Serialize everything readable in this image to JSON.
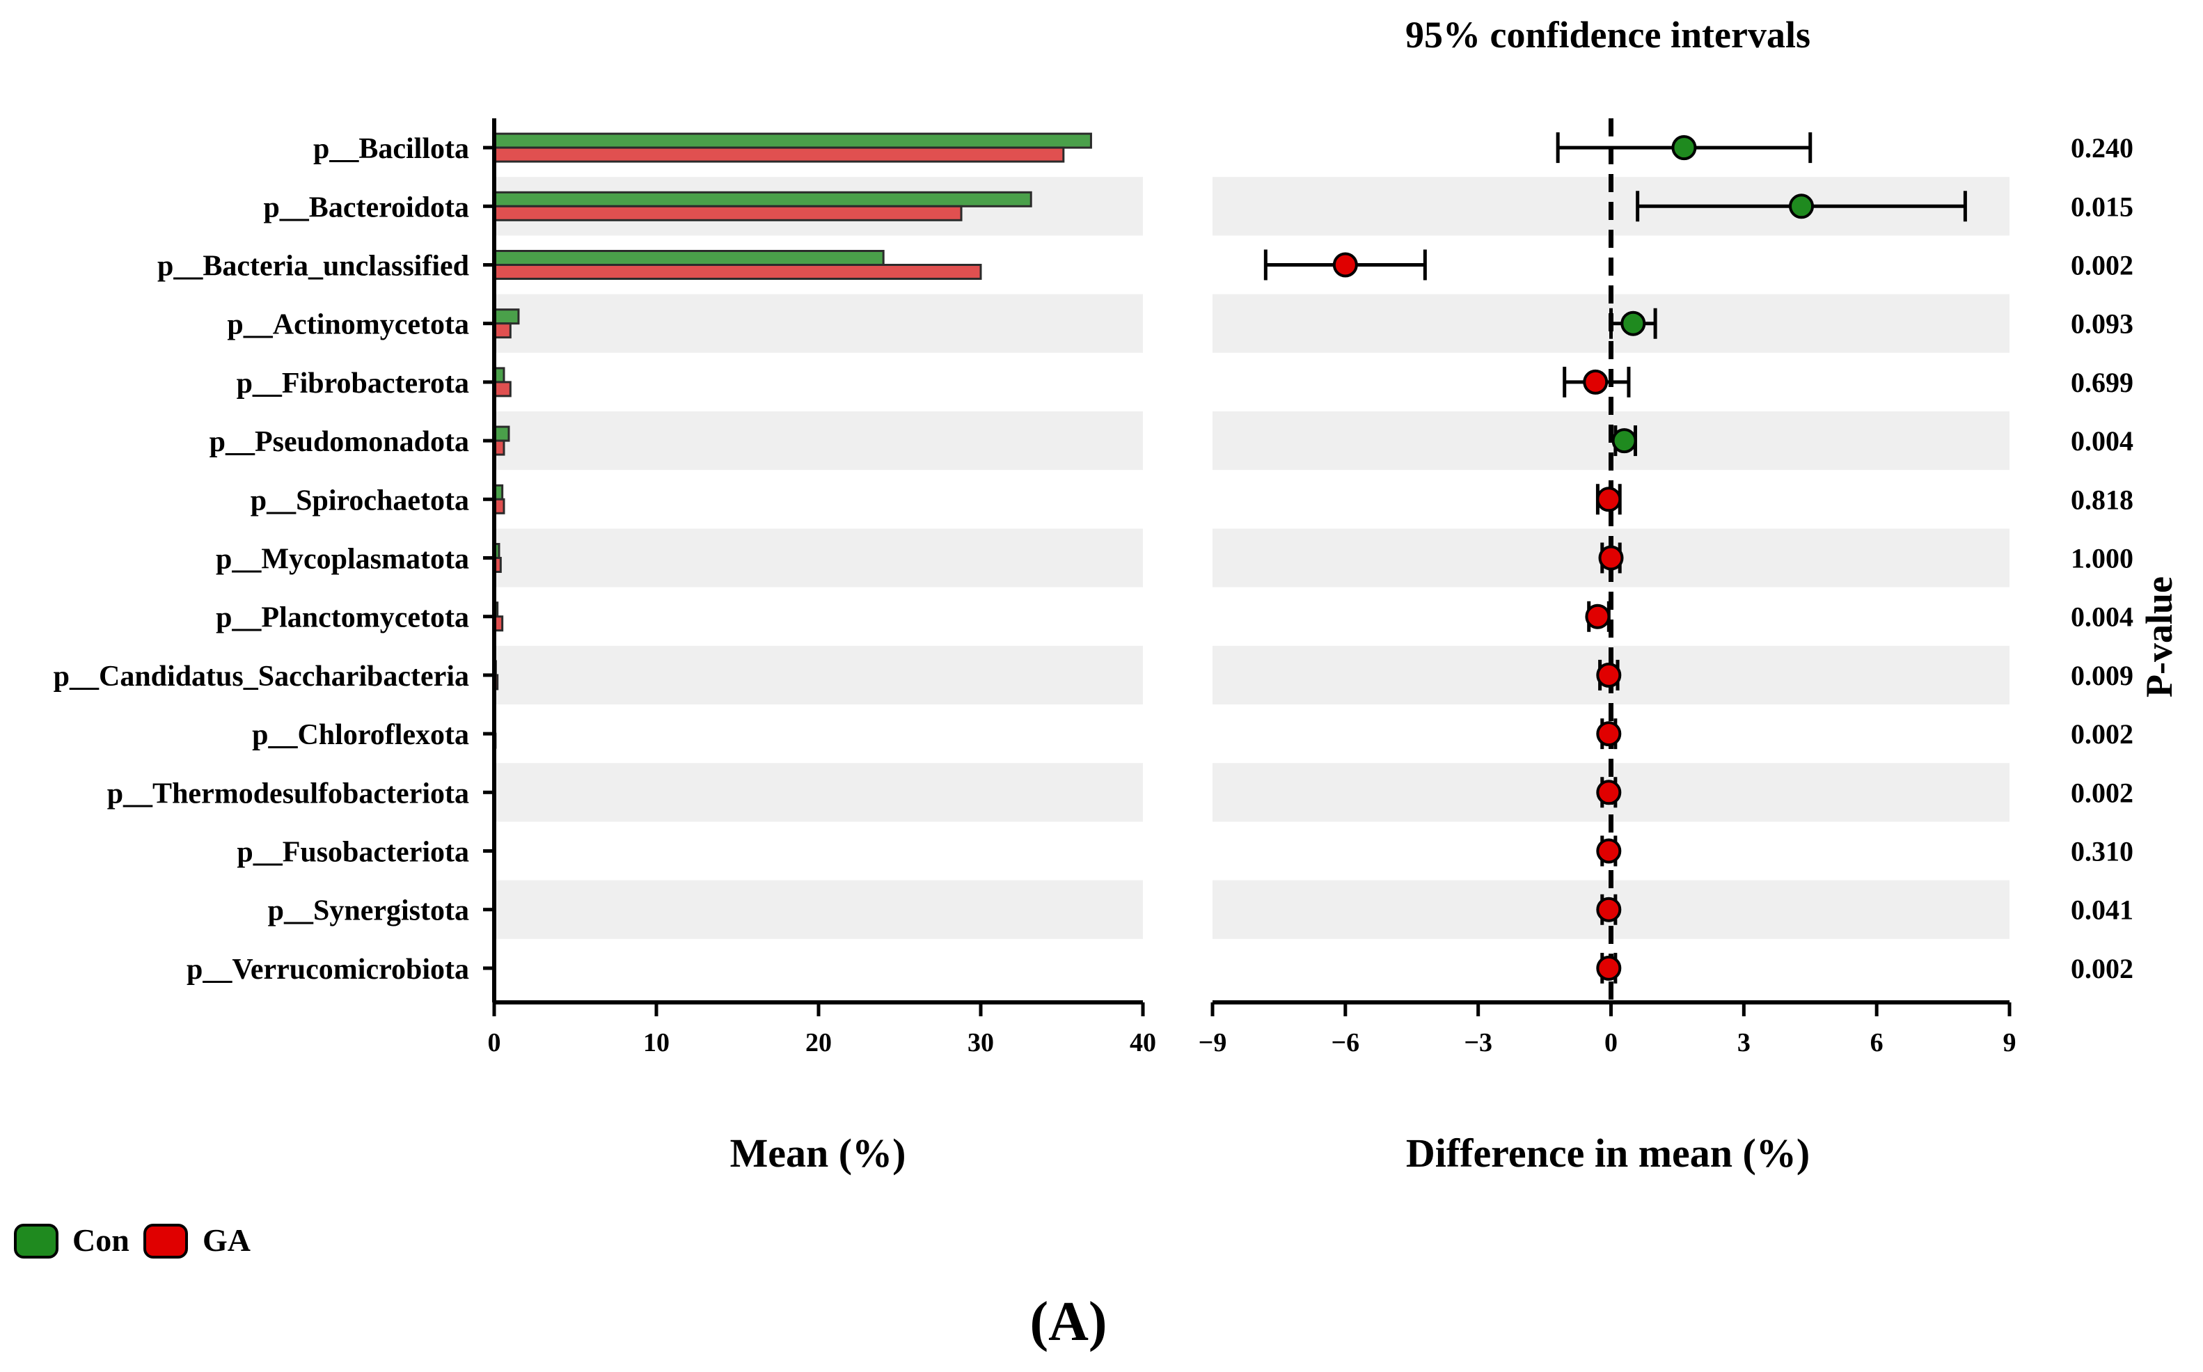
{
  "chart_data": {
    "type": "extended_error_bar",
    "panel_label": "(A)",
    "categories": [
      "p__Bacillota",
      "p__Bacteroidota",
      "p__Bacteria_unclassified",
      "p__Actinomycetota",
      "p__Fibrobacterota",
      "p__Pseudomonadota",
      "p__Spirochaetota",
      "p__Mycoplasmatota",
      "p__Planctomycetota",
      "p__Candidatus_Saccharibacteria",
      "p__Chloroflexota",
      "p__Thermodesulfobacteriota",
      "p__Fusobacteriota",
      "p__Synergistota",
      "p__Verrucomicrobiota"
    ],
    "groups": [
      {
        "name": "Con",
        "color": "#1f8a1f",
        "bar_color": "#4aa04a"
      },
      {
        "name": "GA",
        "color": "#e00000",
        "bar_color": "#e05050"
      }
    ],
    "mean_panel": {
      "xlabel": "Mean (%)",
      "xlim": [
        0,
        40
      ],
      "ticks": [
        0,
        10,
        20,
        30,
        40
      ],
      "series": [
        {
          "name": "Con",
          "values": [
            36.8,
            33.1,
            24.0,
            1.5,
            0.6,
            0.9,
            0.5,
            0.3,
            0.2,
            0.1,
            0.05,
            0.05,
            0.03,
            0.03,
            0.02
          ]
        },
        {
          "name": "GA",
          "values": [
            35.1,
            28.8,
            30.0,
            1.0,
            1.0,
            0.6,
            0.6,
            0.4,
            0.5,
            0.2,
            0.08,
            0.06,
            0.04,
            0.04,
            0.03
          ]
        }
      ]
    },
    "diff_panel": {
      "title": "95% confidence intervals",
      "xlabel": "Difference in mean (%)",
      "xlim": [
        -9,
        9
      ],
      "ticks": [
        -9,
        -6,
        -3,
        0,
        3,
        6,
        9
      ],
      "tick_labels": [
        "−9",
        "−6",
        "−3",
        "0",
        "3",
        "6",
        "9"
      ],
      "points": [
        {
          "diff": 1.65,
          "lo": -1.2,
          "hi": 4.5,
          "group": "Con"
        },
        {
          "diff": 4.3,
          "lo": 0.6,
          "hi": 8.0,
          "group": "Con"
        },
        {
          "diff": -6.0,
          "lo": -7.8,
          "hi": -4.2,
          "group": "GA"
        },
        {
          "diff": 0.5,
          "lo": 0.0,
          "hi": 1.0,
          "group": "Con"
        },
        {
          "diff": -0.35,
          "lo": -1.05,
          "hi": 0.4,
          "group": "GA"
        },
        {
          "diff": 0.3,
          "lo": 0.1,
          "hi": 0.55,
          "group": "Con"
        },
        {
          "diff": -0.05,
          "lo": -0.3,
          "hi": 0.2,
          "group": "GA"
        },
        {
          "diff": 0.0,
          "lo": -0.2,
          "hi": 0.2,
          "group": "GA"
        },
        {
          "diff": -0.3,
          "lo": -0.5,
          "hi": -0.05,
          "group": "GA"
        },
        {
          "diff": -0.05,
          "lo": -0.25,
          "hi": 0.15,
          "group": "GA"
        },
        {
          "diff": -0.05,
          "lo": -0.2,
          "hi": 0.1,
          "group": "GA"
        },
        {
          "diff": -0.05,
          "lo": -0.2,
          "hi": 0.1,
          "group": "GA"
        },
        {
          "diff": -0.05,
          "lo": -0.2,
          "hi": 0.1,
          "group": "GA"
        },
        {
          "diff": -0.05,
          "lo": -0.2,
          "hi": 0.1,
          "group": "GA"
        },
        {
          "diff": -0.05,
          "lo": -0.2,
          "hi": 0.1,
          "group": "GA"
        }
      ]
    },
    "p_value_label": "P-value",
    "p_values": [
      "0.240",
      "0.015",
      "0.002",
      "0.093",
      "0.699",
      "0.004",
      "0.818",
      "1.000",
      "0.004",
      "0.009",
      "0.002",
      "0.002",
      "0.310",
      "0.041",
      "0.002"
    ],
    "legend": [
      "Con",
      "GA"
    ]
  }
}
